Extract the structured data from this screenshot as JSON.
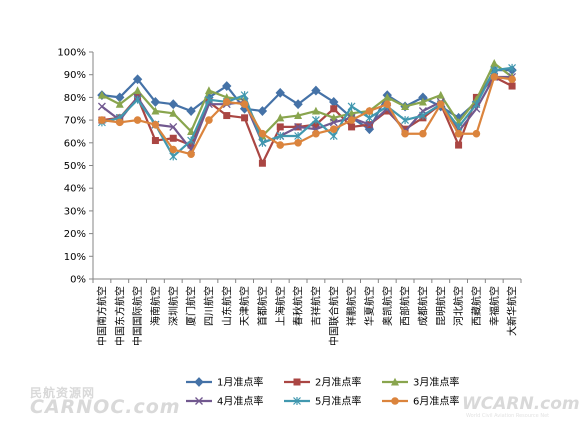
{
  "watermarks": {
    "left_top": "民航资源网",
    "left": "CARNOC.com",
    "right": "WCARN.com",
    "right_sub": "World Civil Aviation Resource Net"
  },
  "chart_data": {
    "type": "line",
    "title": "",
    "xlabel": "",
    "ylabel": "",
    "ylim": [
      0,
      100
    ],
    "yticks": [
      "0%",
      "10%",
      "20%",
      "30%",
      "40%",
      "50%",
      "60%",
      "70%",
      "80%",
      "90%",
      "100%"
    ],
    "y_unit": "%",
    "grid": false,
    "legend_position": "bottom",
    "categories": [
      "中国南方航空",
      "中国东方航空",
      "中国国际航空",
      "海南航空",
      "深圳航空",
      "厦门航空",
      "四川航空",
      "山东航空",
      "天津航空",
      "首都航空",
      "上海航空",
      "春秋航空",
      "吉祥航空",
      "中国联合航空",
      "祥鹏航空",
      "华夏航空",
      "奥凯航空",
      "西部航空",
      "成都航空",
      "昆明航空",
      "河北航空",
      "西藏航空",
      "幸福航空",
      "大新华航空"
    ],
    "series": [
      {
        "name": "1月准点率",
        "color": "#4572a7",
        "marker": "diamond",
        "values": [
          81,
          80,
          88,
          78,
          77,
          74,
          80,
          85,
          75,
          74,
          82,
          77,
          83,
          78,
          71,
          66,
          81,
          76,
          80,
          76,
          71,
          78,
          92,
          92
        ]
      },
      {
        "name": "2月准点率",
        "color": "#aa4643",
        "marker": "square",
        "values": [
          70,
          71,
          80,
          61,
          62,
          59,
          78,
          72,
          71,
          51,
          67,
          67,
          68,
          75,
          67,
          68,
          74,
          66,
          71,
          77,
          59,
          80,
          89,
          85
        ]
      },
      {
        "name": "3月准点率",
        "color": "#89a54e",
        "marker": "triangle",
        "values": [
          81,
          77,
          83,
          74,
          73,
          65,
          83,
          80,
          79,
          63,
          71,
          72,
          74,
          71,
          73,
          74,
          80,
          76,
          78,
          81,
          69,
          79,
          95,
          89
        ]
      },
      {
        "name": "4月准点率",
        "color": "#71588f",
        "marker": "x",
        "values": [
          76,
          70,
          80,
          68,
          67,
          57,
          77,
          77,
          78,
          60,
          63,
          67,
          66,
          69,
          71,
          68,
          75,
          65,
          74,
          78,
          65,
          75,
          89,
          89
        ]
      },
      {
        "name": "5月准点率",
        "color": "#4198af",
        "marker": "star",
        "values": [
          69,
          71,
          79,
          68,
          54,
          61,
          79,
          78,
          81,
          60,
          63,
          63,
          70,
          63,
          76,
          71,
          76,
          70,
          72,
          77,
          67,
          77,
          92,
          93
        ]
      },
      {
        "name": "6月准点率",
        "color": "#db843d",
        "marker": "circle",
        "values": [
          70,
          69,
          70,
          68,
          57,
          55,
          70,
          78,
          77,
          64,
          59,
          60,
          64,
          66,
          70,
          74,
          77,
          64,
          64,
          77,
          64,
          64,
          89,
          88
        ]
      }
    ]
  }
}
